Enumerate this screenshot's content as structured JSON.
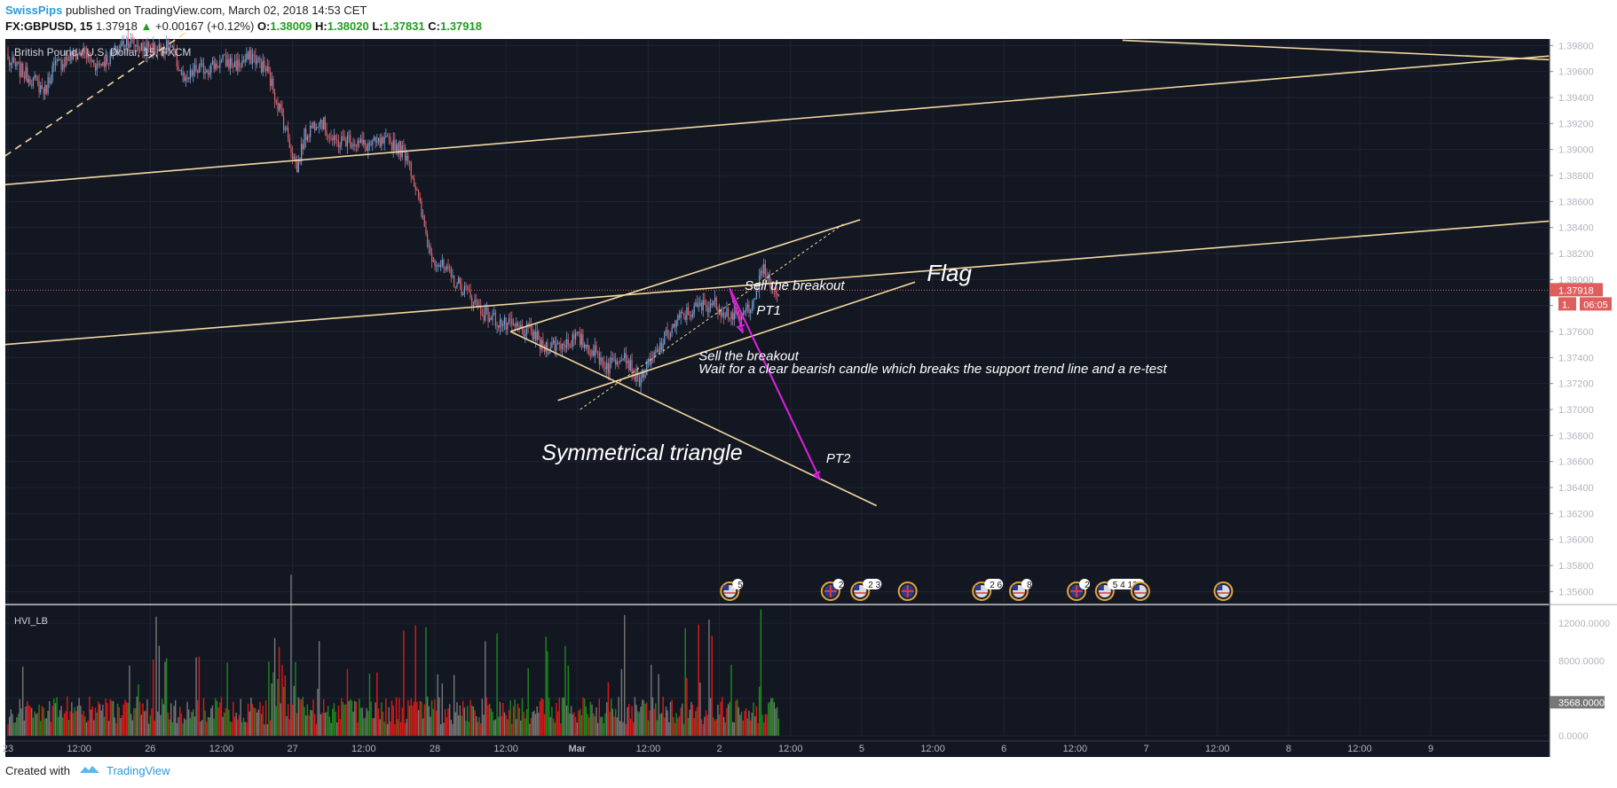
{
  "header": {
    "author": "SwissPips",
    "published": "published on TradingView.com, March 02, 2018 14:53 CET",
    "symbol": "FX:GBPUSD, 15",
    "last": "1.37918",
    "change": "+0.00167 (+0.12%)",
    "o_label": "O:",
    "o_value": "1.38009",
    "h_label": "H:",
    "h_value": "1.38020",
    "l_label": "L:",
    "l_value": "1.37831",
    "c_label": "C:",
    "c_value": "1.37918"
  },
  "footer": {
    "created": "Created with",
    "brand": "TradingView"
  },
  "colors": {
    "background": "#131722",
    "up": "#6fa8dc",
    "down": "#e06670",
    "trendline": "#f3d9a0",
    "arrow": "#e020e0",
    "price_tag": "#e05d5d",
    "vol_red": "#e01818",
    "vol_green": "#1d8a1d",
    "vol_gray": "#777777"
  },
  "chart_data": [
    {
      "type": "candlestick",
      "title": "British Pound / U.S. Dollar, 15, FXCM",
      "ylim": [
        1.355,
        1.3985
      ],
      "y_ticks": [
        1.398,
        1.396,
        1.394,
        1.392,
        1.39,
        1.388,
        1.386,
        1.384,
        1.382,
        1.38,
        1.378,
        1.376,
        1.374,
        1.372,
        1.37,
        1.368,
        1.366,
        1.364,
        1.362,
        1.36,
        1.358,
        1.356
      ],
      "y_tick_labels": [
        "1.39800",
        "1.39600",
        "1.39400",
        "1.39200",
        "1.39000",
        "1.38800",
        "1.38600",
        "1.38400",
        "1.38200",
        "1.38000",
        "",
        "1.37600",
        "1.37400",
        "1.37200",
        "1.37000",
        "1.36800",
        "1.36600",
        "1.36400",
        "1.36200",
        "1.36000",
        "1.35800",
        "1.35600"
      ],
      "x_tick_labels": [
        "23",
        "12:00",
        "26",
        "12:00",
        "27",
        "12:00",
        "28",
        "12:00",
        "Mar",
        "12:00",
        "2",
        "12:00",
        "5",
        "12:00",
        "6",
        "12:00",
        "7",
        "12:00",
        "8",
        "12:00",
        "9"
      ],
      "x_tick_bar_index": [
        0,
        48,
        96,
        144,
        192,
        240,
        288,
        336,
        384,
        432,
        480,
        528,
        576,
        624,
        672,
        720,
        768,
        816,
        864,
        912,
        960
      ],
      "bars_per_day": 96,
      "last_price": "1.37918",
      "countdown": "06:05",
      "series_anchors": [
        [
          0,
          1.3968
        ],
        [
          15,
          1.3955
        ],
        [
          25,
          1.3945
        ],
        [
          30,
          1.3962
        ],
        [
          40,
          1.397
        ],
        [
          50,
          1.3975
        ],
        [
          60,
          1.3965
        ],
        [
          70,
          1.3972
        ],
        [
          80,
          1.3985
        ],
        [
          90,
          1.3978
        ],
        [
          110,
          1.3978
        ],
        [
          120,
          1.395
        ],
        [
          125,
          1.396
        ],
        [
          135,
          1.3963
        ],
        [
          145,
          1.3968
        ],
        [
          155,
          1.3965
        ],
        [
          165,
          1.3972
        ],
        [
          175,
          1.396
        ],
        [
          185,
          1.3925
        ],
        [
          195,
          1.3885
        ],
        [
          200,
          1.391
        ],
        [
          210,
          1.3925
        ],
        [
          220,
          1.3905
        ],
        [
          230,
          1.3908
        ],
        [
          240,
          1.3903
        ],
        [
          255,
          1.3905
        ],
        [
          260,
          1.3905
        ],
        [
          270,
          1.3895
        ],
        [
          285,
          1.382
        ],
        [
          300,
          1.38
        ],
        [
          310,
          1.379
        ],
        [
          320,
          1.3775
        ],
        [
          335,
          1.3765
        ],
        [
          345,
          1.3762
        ],
        [
          355,
          1.3758
        ],
        [
          360,
          1.3748
        ],
        [
          372,
          1.375
        ],
        [
          384,
          1.3755
        ],
        [
          395,
          1.3745
        ],
        [
          405,
          1.3733
        ],
        [
          415,
          1.3745
        ],
        [
          425,
          1.3722
        ],
        [
          435,
          1.3738
        ],
        [
          445,
          1.3758
        ],
        [
          455,
          1.3772
        ],
        [
          465,
          1.3778
        ],
        [
          475,
          1.3782
        ],
        [
          485,
          1.3775
        ],
        [
          495,
          1.377
        ],
        [
          505,
          1.379
        ],
        [
          510,
          1.381
        ],
        [
          515,
          1.3792
        ],
        [
          520,
          1.379
        ]
      ],
      "annotations": [
        {
          "text": "Flag",
          "size": "large"
        },
        {
          "text": "Symmetrical triangle",
          "size": "large"
        },
        {
          "text": "Sell the breakout"
        },
        {
          "text": "PT1"
        },
        {
          "text": "Sell the breakout"
        },
        {
          "text": "Wait for a clear bearish candle which breaks the support trend line and a re-test"
        },
        {
          "text": "PT2"
        }
      ],
      "event_badges": [
        "5",
        "2",
        "2 3",
        "",
        "2 6",
        "8",
        "2",
        "5 4 12",
        "",
        ""
      ]
    },
    {
      "type": "bar",
      "title": "HVI_LB",
      "ylim": [
        0,
        14000
      ],
      "y_ticks": [
        12000,
        8000,
        4000,
        0
      ],
      "y_tick_labels": [
        "12000.0000",
        "8000.0000",
        "",
        "0.0000"
      ],
      "last_value": "3568.0000",
      "legend_colors": [
        "red",
        "green",
        "gray"
      ]
    }
  ]
}
